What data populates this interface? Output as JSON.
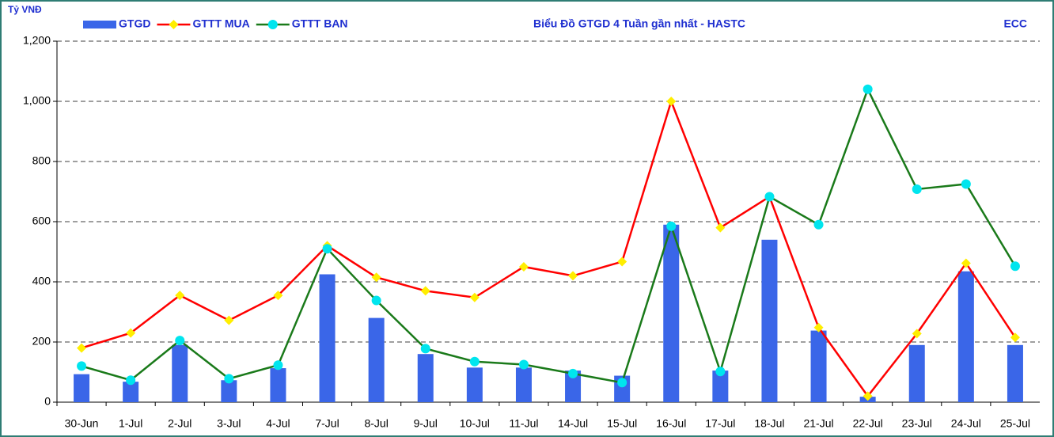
{
  "chart_data": {
    "type": "bar-line",
    "title": "Biểu Đồ GTGD 4 Tuần gần nhất - HASTC",
    "corner_label": "ECC",
    "y_axis_label": "Tỷ VNĐ",
    "categories": [
      "30-Jun",
      "1-Jul",
      "2-Jul",
      "3-Jul",
      "4-Jul",
      "7-Jul",
      "8-Jul",
      "9-Jul",
      "10-Jul",
      "11-Jul",
      "14-Jul",
      "15-Jul",
      "16-Jul",
      "17-Jul",
      "18-Jul",
      "21-Jul",
      "22-Jul",
      "23-Jul",
      "24-Jul",
      "25-Jul"
    ],
    "series": [
      {
        "name": "GTGD",
        "type": "bar",
        "color": "#3a66e8",
        "values": [
          93,
          68,
          190,
          73,
          113,
          425,
          280,
          160,
          115,
          115,
          105,
          88,
          590,
          105,
          540,
          238,
          18,
          190,
          435,
          190
        ]
      },
      {
        "name": "GTTT MUA",
        "type": "line",
        "color": "#ff0000",
        "marker": "diamond",
        "marker_color": "#ffee00",
        "values": [
          180,
          230,
          355,
          272,
          355,
          520,
          415,
          370,
          348,
          450,
          420,
          467,
          1000,
          580,
          683,
          248,
          20,
          228,
          462,
          215
        ]
      },
      {
        "name": "GTTT BAN",
        "type": "line",
        "color": "#1a7a1a",
        "marker": "circle",
        "marker_color": "#00e5ee",
        "values": [
          120,
          73,
          205,
          78,
          123,
          510,
          338,
          178,
          135,
          125,
          95,
          65,
          585,
          102,
          683,
          590,
          1040,
          708,
          725,
          452
        ]
      }
    ],
    "ylim": [
      0,
      1200
    ],
    "yticks": [
      0,
      200,
      400,
      600,
      800,
      {
        "value": 1000,
        "label": "1,000"
      },
      {
        "value": 1200,
        "label": "1,200"
      }
    ],
    "grid": true
  }
}
